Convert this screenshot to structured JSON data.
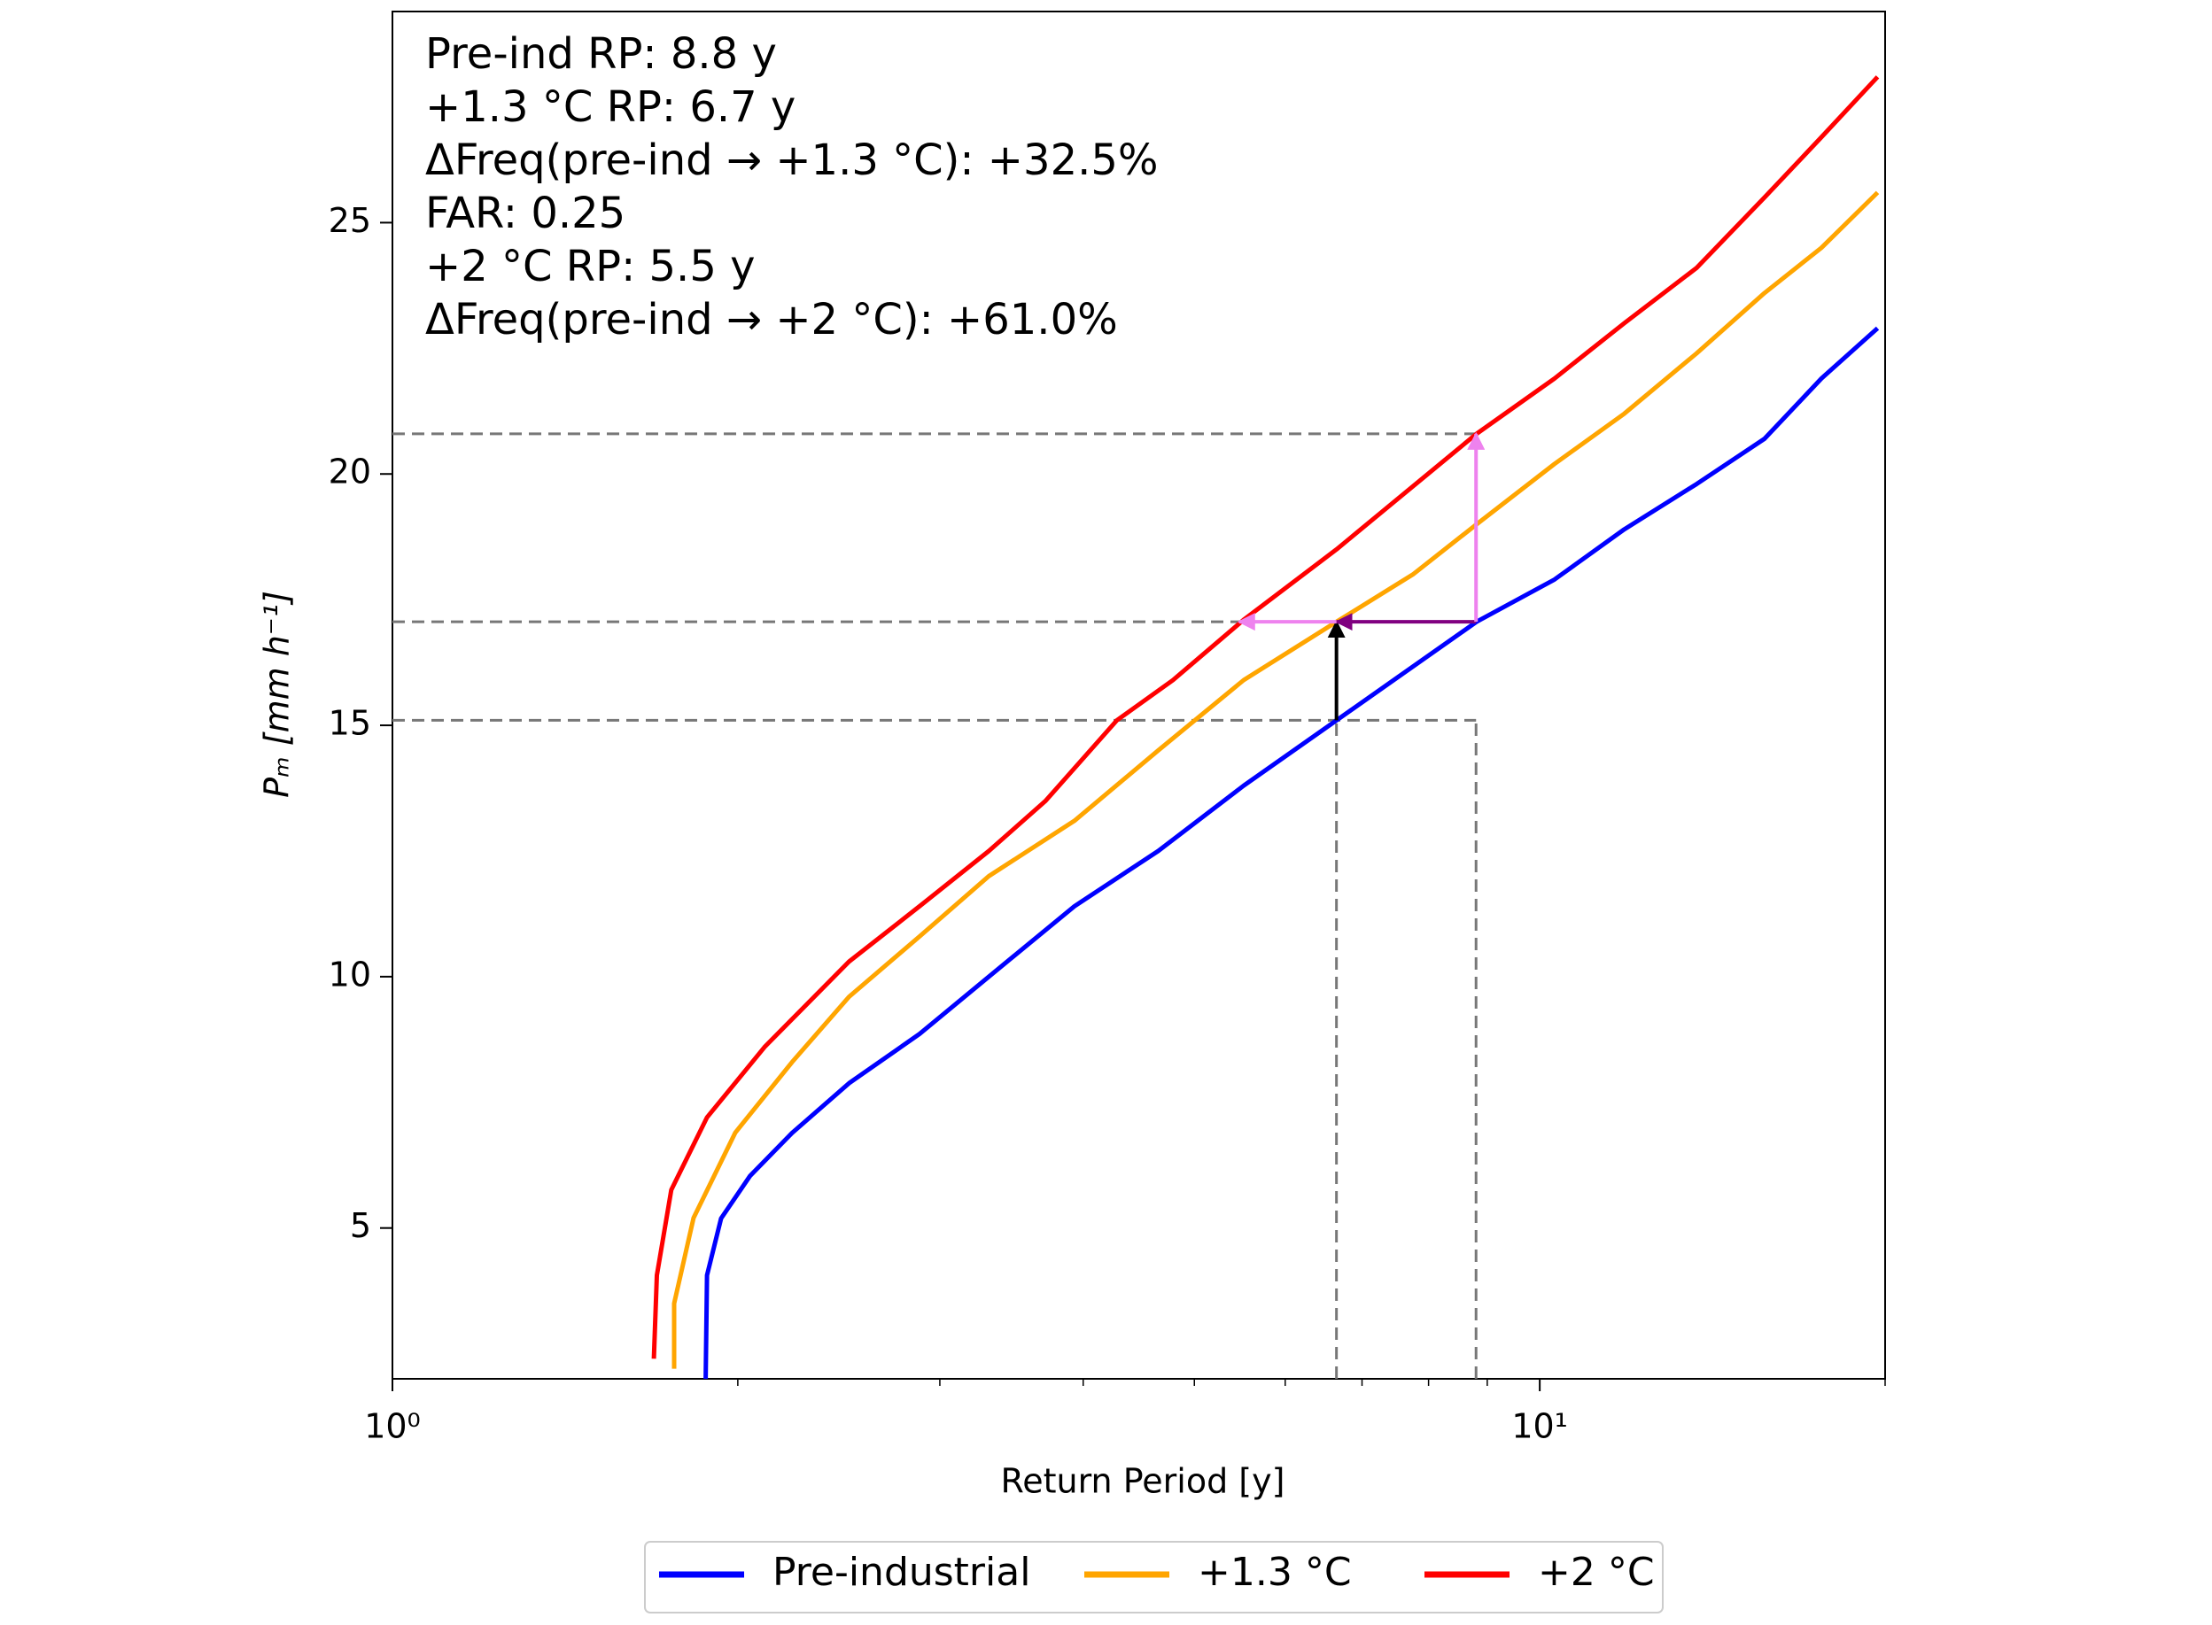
{
  "chart_data": {
    "type": "line",
    "xlabel": "Return Period [y]",
    "ylabel": "Pₘ [mm h⁻¹]",
    "xscale": "log",
    "xlim": [
      1,
      20
    ],
    "ylim": [
      2,
      29.2
    ],
    "xticks": [
      {
        "value": 1,
        "label": "10⁰"
      },
      {
        "value": 10,
        "label": "10¹"
      }
    ],
    "xminorticks": [
      2,
      3,
      4,
      5,
      6,
      7,
      8,
      9,
      20
    ],
    "yticks": [
      5,
      10,
      15,
      20,
      25
    ],
    "legend": "lower center outside",
    "annotations": [
      "Pre-ind RP: 8.8 y",
      "+1.3 °C RP: 6.7 y",
      "ΔFreq(pre-ind → +1.3 °C): +32.5%",
      "FAR: 0.25",
      "+2 °C RP: 5.5 y",
      "ΔFreq(pre-ind → +2 °C): +61.0%"
    ],
    "hlines": [
      20.8,
      17.06,
      15.1
    ],
    "vlines": [
      6.65,
      8.8
    ],
    "guide_color": "#777777",
    "arrows": [
      {
        "color": "#000000",
        "x": [
          6.65,
          6.65
        ],
        "y": [
          15.1,
          17.06
        ]
      },
      {
        "color": "#800080",
        "x": [
          8.8,
          6.65
        ],
        "y": [
          17.06,
          17.06
        ]
      },
      {
        "color": "#ee82ee",
        "x": [
          8.8,
          8.8
        ],
        "y": [
          17.06,
          20.8
        ]
      },
      {
        "color": "#ee82ee",
        "x": [
          6.65,
          5.47
        ],
        "y": [
          17.06,
          17.06
        ]
      }
    ],
    "series": [
      {
        "name": "Pre-industrial",
        "color": "#0000ff",
        "x": [
          1.875,
          1.88,
          1.934,
          2.05,
          2.23,
          2.5,
          2.88,
          3.31,
          3.93,
          4.65,
          5.52,
          6.65,
          8.81,
          10.3,
          11.85,
          13.7,
          15.7,
          17.6,
          19.7
        ],
        "values": [
          2.0,
          4.06,
          5.19,
          6.04,
          6.89,
          7.88,
          8.86,
          10.0,
          11.4,
          12.5,
          13.8,
          15.1,
          17.06,
          17.9,
          18.9,
          19.8,
          20.7,
          21.9,
          22.9
        ]
      },
      {
        "name": "+1.3 °C",
        "color": "#ffa500",
        "x": [
          1.76,
          1.76,
          1.83,
          1.99,
          2.23,
          2.5,
          2.88,
          3.31,
          3.93,
          4.65,
          5.52,
          6.65,
          7.75,
          8.81,
          10.3,
          11.85,
          13.7,
          15.7,
          17.6,
          19.7
        ],
        "values": [
          2.2,
          3.5,
          5.2,
          6.9,
          8.3,
          9.6,
          10.8,
          12.0,
          13.1,
          14.5,
          15.9,
          17.06,
          18.0,
          19.0,
          20.2,
          21.2,
          22.4,
          23.6,
          24.5,
          25.6
        ]
      },
      {
        "name": "+2 °C",
        "color": "#ff0000",
        "x": [
          1.69,
          1.7,
          1.75,
          1.88,
          2.11,
          2.5,
          2.88,
          3.31,
          3.71,
          4.28,
          4.79,
          5.52,
          6.65,
          8.81,
          10.3,
          11.85,
          13.7,
          15.7,
          17.6,
          19.7
        ],
        "values": [
          2.4,
          4.06,
          5.76,
          7.2,
          8.6,
          10.3,
          11.4,
          12.5,
          13.5,
          15.1,
          15.9,
          17.1,
          18.5,
          20.8,
          21.9,
          23.0,
          24.1,
          25.5,
          26.7,
          27.9
        ]
      }
    ]
  }
}
